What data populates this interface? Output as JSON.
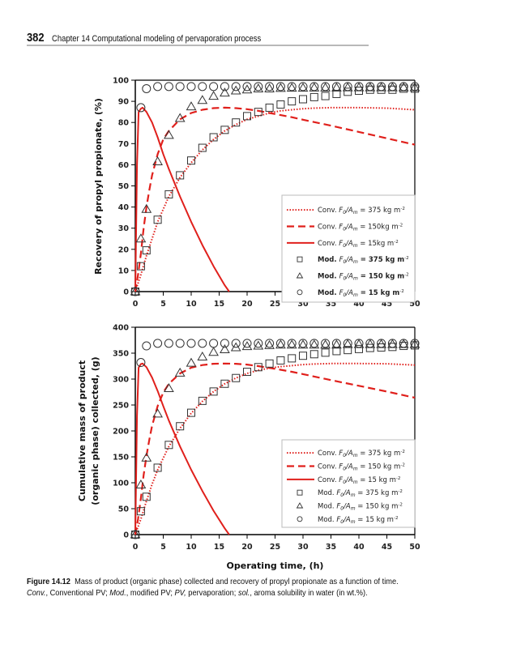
{
  "page": {
    "page_number": "382",
    "running_title": "Chapter 14  Computational modeling of pervaporation process"
  },
  "caption": {
    "label": "Figure 14.12",
    "line1": "Mass of product (organic phase) collected and recovery of propyl propionate as a function of time.",
    "line2_parts": [
      {
        "text": "Conv.",
        "italic": true
      },
      {
        "text": ", Conventional PV; ",
        "italic": false
      },
      {
        "text": "Mod.",
        "italic": true
      },
      {
        "text": ", modified PV; ",
        "italic": false
      },
      {
        "text": "PV,",
        "italic": true
      },
      {
        "text": " pervaporation; ",
        "italic": false
      },
      {
        "text": "sol.",
        "italic": true
      },
      {
        "text": ", aroma solubility in water (in wt.%).",
        "italic": false
      }
    ]
  },
  "colors": {
    "conv": "#e0201c",
    "marker": "#333333",
    "axis": "#000000"
  },
  "chart_data": [
    {
      "type": "line",
      "id": "recovery",
      "title": "",
      "xlabel": "",
      "ylabel": "Recovery of propyl propionate, (%)",
      "xlim": [
        0,
        50
      ],
      "ylim": [
        0,
        100
      ],
      "xticks": [
        0,
        5,
        10,
        15,
        20,
        25,
        30,
        35,
        40,
        45,
        50
      ],
      "yticks": [
        0,
        10,
        20,
        30,
        40,
        50,
        60,
        70,
        80,
        90,
        100
      ],
      "grid": false,
      "legend_position": "center-right",
      "legend": [
        {
          "kind": "dotted",
          "prefix": "Conv.",
          "value": "375 kg m",
          "bold": false
        },
        {
          "kind": "dashed",
          "prefix": "Conv.",
          "value": "150kg m",
          "bold": false
        },
        {
          "kind": "solid",
          "prefix": "Conv.",
          "value": "15kg m",
          "bold": false
        },
        {
          "kind": "square",
          "prefix": "Mod.",
          "value": "375 kg m",
          "bold": true
        },
        {
          "kind": "triangle",
          "prefix": "Mod.",
          "value": "150 kg m",
          "bold": true
        },
        {
          "kind": "circle",
          "prefix": "Mod.",
          "value": "15 kg m",
          "bold": true
        }
      ],
      "series": [
        {
          "name": "Conv. F0/Am = 375 kg m-2",
          "style": "dotted",
          "x": [
            0,
            1,
            2,
            3,
            4,
            6,
            8,
            10,
            12,
            14,
            16,
            18,
            20,
            22,
            24,
            26,
            28,
            30,
            32,
            35,
            40,
            45,
            50
          ],
          "y": [
            0,
            8,
            17,
            25,
            33,
            45,
            54,
            61,
            67,
            72,
            76,
            79,
            81.5,
            83,
            84.5,
            85.5,
            86,
            86.5,
            86.8,
            87,
            87,
            86.8,
            86
          ]
        },
        {
          "name": "Conv. F0/Am = 150 kg m-2",
          "style": "dashed",
          "x": [
            0,
            0.5,
            1,
            1.5,
            2,
            2.5,
            3,
            4,
            5,
            6,
            8,
            10,
            12,
            14,
            16,
            18,
            20,
            22,
            24,
            26,
            28,
            30,
            35,
            40,
            45,
            50
          ],
          "y": [
            0,
            8,
            18,
            30,
            40,
            48,
            55,
            65,
            72,
            76,
            81.5,
            84.5,
            86,
            86.8,
            87,
            86.8,
            86.3,
            85.5,
            84.5,
            83.5,
            82.5,
            81.3,
            78.5,
            75.5,
            72.5,
            69.5
          ]
        },
        {
          "name": "Conv. F0/Am = 15 kg m-2",
          "style": "solid",
          "x": [
            0,
            0.3,
            0.6,
            1.0,
            1.3,
            2,
            3,
            4,
            5,
            6,
            8,
            10,
            12,
            14,
            16,
            16.8
          ],
          "y": [
            0,
            60,
            85,
            86.5,
            87,
            85,
            80,
            73,
            65,
            58,
            45,
            33,
            22,
            12,
            3,
            0
          ]
        },
        {
          "name": "Mod. F0/Am = 375 kg m-2",
          "style": "square",
          "x": [
            0,
            1,
            2,
            4,
            6,
            8,
            10,
            12,
            14,
            16,
            18,
            20,
            22,
            24,
            26,
            28,
            30,
            32,
            34,
            36,
            38,
            40,
            42,
            44,
            46,
            48,
            50
          ],
          "y": [
            0,
            12,
            19.5,
            34,
            46,
            55,
            62,
            68,
            73,
            76.5,
            80,
            83,
            85,
            87,
            88.5,
            90,
            91,
            92,
            92.5,
            93.5,
            94.5,
            95,
            95.5,
            95.5,
            95.5,
            96,
            96
          ]
        },
        {
          "name": "Mod. F0/Am = 150 kg m-2",
          "style": "triangle",
          "x": [
            0,
            1,
            2,
            4,
            6,
            8,
            10,
            12,
            14,
            16,
            18,
            20,
            22,
            24,
            26,
            28,
            30,
            32,
            34,
            36,
            38,
            40,
            42,
            44,
            46,
            48,
            50
          ],
          "y": [
            0,
            25,
            39,
            61.5,
            74,
            82,
            87.5,
            90.5,
            92.5,
            94,
            95,
            95.5,
            96,
            96,
            96.2,
            96.3,
            96.3,
            96.4,
            96.4,
            96.4,
            96.5,
            96.5,
            96.5,
            96.5,
            96.5,
            96.5,
            96.5
          ]
        },
        {
          "name": "Mod. F0/Am = 15 kg m-2",
          "style": "circle",
          "x": [
            0,
            1,
            2,
            4,
            6,
            8,
            10,
            12,
            14,
            16,
            18,
            20,
            22,
            24,
            26,
            28,
            30,
            32,
            34,
            36,
            38,
            40,
            42,
            44,
            46,
            48,
            50
          ],
          "y": [
            0,
            87,
            96,
            97,
            97,
            97,
            97,
            97,
            97,
            97,
            97,
            97,
            97,
            97,
            97,
            97,
            97,
            97,
            97,
            97,
            97,
            97,
            97,
            97,
            97,
            97,
            97
          ]
        }
      ]
    },
    {
      "type": "line",
      "id": "mass",
      "title": "",
      "xlabel": "Operating time, (h)",
      "ylabel_lines": [
        "Cumulative mass of product",
        "(organic phase) collected, (g)"
      ],
      "xlim": [
        0,
        50
      ],
      "ylim": [
        0,
        400
      ],
      "xticks": [
        0,
        5,
        10,
        15,
        20,
        25,
        30,
        35,
        40,
        45,
        50
      ],
      "yticks": [
        0,
        50,
        100,
        150,
        200,
        250,
        300,
        350,
        400
      ],
      "grid": false,
      "legend_position": "center-right",
      "legend": [
        {
          "kind": "dotted",
          "prefix": "Conv.",
          "value": "375 kg m",
          "bold": false
        },
        {
          "kind": "dashed",
          "prefix": "Conv.",
          "value": "150 kg m",
          "bold": false
        },
        {
          "kind": "solid",
          "prefix": "Conv.",
          "value": "15 kg m",
          "bold": false
        },
        {
          "kind": "square",
          "prefix": "Mod.",
          "value": "375 kg m",
          "bold": false
        },
        {
          "kind": "triangle",
          "prefix": "Mod.",
          "value": "150 kg m",
          "bold": false
        },
        {
          "kind": "circle",
          "prefix": "Mod.",
          "value": "15 kg m",
          "bold": false
        }
      ],
      "series": [
        {
          "name": "Conv. F0/Am = 375 kg m-2",
          "style": "dotted",
          "x": [
            0,
            1,
            2,
            3,
            4,
            6,
            8,
            10,
            12,
            14,
            16,
            18,
            20,
            22,
            24,
            26,
            28,
            30,
            32,
            35,
            40,
            45,
            50
          ],
          "y": [
            0,
            30,
            65,
            97,
            125,
            170,
            205,
            234,
            257,
            276,
            291,
            302,
            311,
            317,
            321,
            324,
            326,
            328,
            329,
            330,
            330,
            329.5,
            327
          ]
        },
        {
          "name": "Conv. F0/Am = 150 kg m-2",
          "style": "dashed",
          "x": [
            0,
            0.5,
            1,
            1.5,
            2,
            2.5,
            3,
            4,
            5,
            6,
            8,
            10,
            12,
            14,
            16,
            18,
            20,
            22,
            24,
            26,
            28,
            30,
            35,
            40,
            45,
            50
          ],
          "y": [
            0,
            30,
            70,
            115,
            152,
            183,
            210,
            248,
            274,
            291,
            311,
            322,
            327,
            329.5,
            330,
            329.5,
            328,
            325,
            321.5,
            318,
            314,
            309.5,
            298,
            287,
            276,
            264
          ]
        },
        {
          "name": "Conv. F0/Am = 15 kg m-2",
          "style": "solid",
          "x": [
            0,
            0.3,
            0.6,
            1.0,
            1.3,
            2,
            3,
            4,
            5,
            6,
            8,
            10,
            12,
            14,
            16,
            16.8
          ],
          "y": [
            0,
            230,
            322,
            329,
            330,
            323,
            303,
            277,
            248,
            220,
            170,
            125,
            84,
            46,
            12,
            0
          ]
        },
        {
          "name": "Mod. F0/Am = 375 kg m-2",
          "style": "square",
          "x": [
            0,
            1,
            2,
            4,
            6,
            8,
            10,
            12,
            14,
            16,
            18,
            20,
            22,
            24,
            26,
            28,
            30,
            32,
            34,
            36,
            38,
            40,
            42,
            44,
            46,
            48,
            50
          ],
          "y": [
            0,
            45,
            73,
            129,
            173,
            209,
            235,
            258,
            276,
            291,
            302,
            314,
            323,
            330,
            336,
            340,
            345,
            348,
            351,
            354,
            356,
            358,
            360,
            361,
            362,
            364,
            365
          ]
        },
        {
          "name": "Mod. F0/Am = 150 kg m-2",
          "style": "triangle",
          "x": [
            0,
            1,
            2,
            4,
            6,
            8,
            10,
            12,
            14,
            16,
            18,
            20,
            22,
            24,
            26,
            28,
            30,
            32,
            34,
            36,
            38,
            40,
            42,
            44,
            46,
            48,
            50
          ],
          "y": [
            0,
            96,
            148,
            233,
            282,
            312,
            331,
            343,
            352,
            357,
            361,
            363,
            364,
            365,
            366,
            366,
            366,
            366,
            366,
            366,
            367,
            367,
            367,
            367,
            367,
            367,
            367
          ]
        },
        {
          "name": "Mod. F0/Am = 15 kg m-2",
          "style": "circle",
          "x": [
            0,
            1,
            2,
            4,
            6,
            8,
            10,
            12,
            14,
            16,
            18,
            20,
            22,
            24,
            26,
            28,
            30,
            32,
            34,
            36,
            38,
            40,
            42,
            44,
            46,
            48,
            50
          ],
          "y": [
            0,
            332,
            364,
            369,
            369,
            369,
            369,
            369,
            369,
            369,
            369,
            369,
            369,
            369,
            369,
            369,
            369,
            369,
            369,
            369,
            369,
            369,
            369,
            369,
            369,
            369,
            369
          ]
        }
      ]
    }
  ]
}
